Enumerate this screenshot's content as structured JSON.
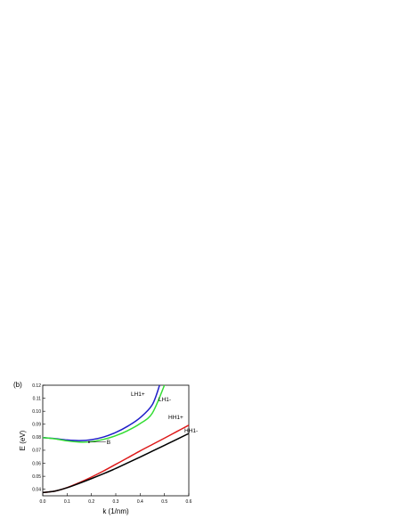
{
  "chart_data": {
    "type": "line",
    "panel_label": "(b)",
    "xlabel": "k (1/nm)",
    "ylabel": "E (eV)",
    "xlim": [
      0.0,
      0.6
    ],
    "ylim": [
      0.035,
      0.12
    ],
    "xticks": [
      "0.0",
      "0.1",
      "0.2",
      "0.3",
      "0.4",
      "0.5",
      "0.6"
    ],
    "yticks": [
      "0.04",
      "0.05",
      "0.06",
      "0.07",
      "0.08",
      "0.09",
      "0.10",
      "0.11",
      "0.12"
    ],
    "grid": false,
    "series": [
      {
        "name": "LH1+",
        "color": "#1f1fc8",
        "x": [
          0.0,
          0.05,
          0.1,
          0.15,
          0.2,
          0.25,
          0.3,
          0.35,
          0.4,
          0.45,
          0.48
        ],
        "y": [
          0.0797,
          0.079,
          0.0779,
          0.0774,
          0.0781,
          0.0802,
          0.0837,
          0.0886,
          0.095,
          0.105,
          0.12
        ]
      },
      {
        "name": "LH1-",
        "color": "#33dd33",
        "x": [
          0.0,
          0.05,
          0.1,
          0.15,
          0.2,
          0.25,
          0.3,
          0.35,
          0.4,
          0.45,
          0.5
        ],
        "y": [
          0.0797,
          0.0788,
          0.0772,
          0.0763,
          0.0766,
          0.0784,
          0.0812,
          0.0852,
          0.0905,
          0.0985,
          0.12
        ]
      },
      {
        "name": "HH1+",
        "color": "#dd1a1a",
        "x": [
          0.0,
          0.05,
          0.1,
          0.15,
          0.2,
          0.25,
          0.3,
          0.35,
          0.4,
          0.45,
          0.5,
          0.55,
          0.6
        ],
        "y": [
          0.0375,
          0.0386,
          0.0413,
          0.0451,
          0.0494,
          0.0541,
          0.0592,
          0.0643,
          0.0695,
          0.0744,
          0.0793,
          0.0843,
          0.0893
        ]
      },
      {
        "name": "HH1-",
        "color": "#000000",
        "x": [
          0.0,
          0.05,
          0.1,
          0.15,
          0.2,
          0.25,
          0.3,
          0.35,
          0.4,
          0.45,
          0.5,
          0.55,
          0.6
        ],
        "y": [
          0.0375,
          0.0386,
          0.0412,
          0.0446,
          0.0482,
          0.052,
          0.056,
          0.0604,
          0.0648,
          0.0693,
          0.0738,
          0.0783,
          0.0829
        ]
      }
    ],
    "annotations": [
      {
        "text": "B",
        "x": 0.19,
        "y": 0.0763,
        "arrow_to": [
          0.19,
          0.0763
        ],
        "text_at": [
          0.27,
          0.0763
        ]
      }
    ]
  }
}
